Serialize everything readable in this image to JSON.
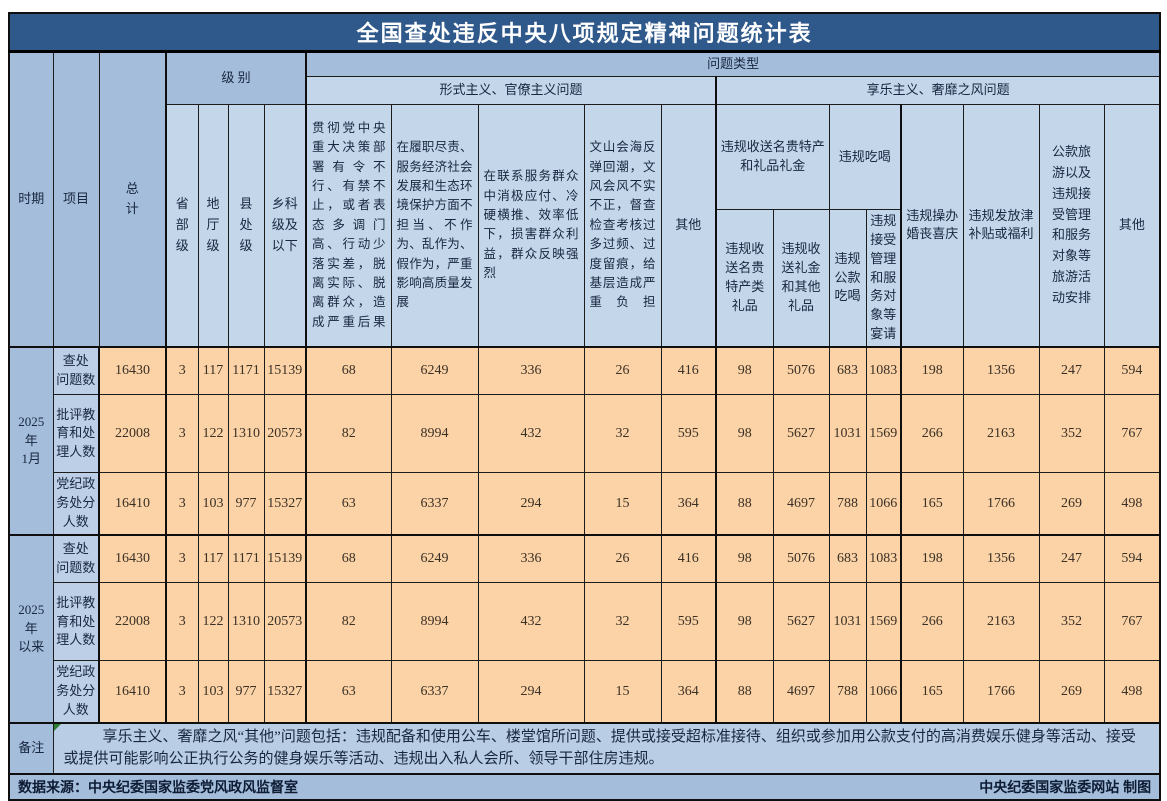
{
  "colors": {
    "title_bg": "#30598B",
    "title_text": "#FFFFFF",
    "header_medium_blue": "#A4BDDB",
    "header_light_blue": "#C3D6EA",
    "row_label_blue": "#BCCFE6",
    "remark_blue": "#B9CDE4",
    "data_cell_peach": "#FBD3A6",
    "border_black": "#0F0F0F"
  },
  "chart_data": {
    "type": "table",
    "title": "全国查处违反中央八项规定精神问题统计表",
    "header": {
      "period": "时期",
      "item": "项目",
      "total": "总计",
      "level_group": "级 别",
      "problem_type": "问题类型",
      "formalism_group": "形式主义、官僚主义问题",
      "hedonism_group": "享乐主义、奢靡之风问题",
      "level_cols": [
        "省部级",
        "地厅级",
        "县处级",
        "乡科级及以下"
      ],
      "formalism_cols": [
        "贯彻党中央重大决策部署有令不行、有禁不止，或者表态多调门高、行动少落实差，脱离实际、脱离群众，造成严重后果",
        "在履职尽责、服务经济社会发展和生态环境保护方面不担当、不作为、乱作为、假作为，严重影响高质量发展",
        "在联系服务群众中消极应付、冷硬横推、效率低下，损害群众利益，群众反映强烈",
        "文山会海反弹回潮，文风会风不实不正，督查检查考核过多过频、过度留痕，给基层造成严重负担",
        "其他"
      ],
      "gifts_group": "违规收送名贵特产和礼品礼金",
      "gifts_cols": [
        "违规收送名贵特产类礼品",
        "违规收送礼金和其他礼品"
      ],
      "dining_group": "违规吃喝",
      "dining_cols": [
        "违规公款吃喝",
        "违规接受管理和服务对象等宴请"
      ],
      "hedonism_single_cols": [
        "违规操办婚丧喜庆",
        "违规发放津补贴或福利",
        "公款旅游以及违规接受管理和服务对象等旅游活动安排",
        "其他"
      ]
    },
    "sections": [
      {
        "period": "2025年1月",
        "period_lines": [
          "2025年",
          "1月"
        ],
        "rows": [
          {
            "label": "查处问题数",
            "label_lines": [
              "查处",
              "问题数"
            ],
            "values": [
              16430,
              3,
              117,
              1171,
              15139,
              68,
              6249,
              336,
              26,
              416,
              98,
              5076,
              683,
              1083,
              198,
              1356,
              247,
              594
            ]
          },
          {
            "label": "批评教育和处理人数",
            "label_lines": [
              "批评教",
              "育和处",
              "理人数"
            ],
            "values": [
              22008,
              3,
              122,
              1310,
              20573,
              82,
              8994,
              432,
              32,
              595,
              98,
              5627,
              1031,
              1569,
              266,
              2163,
              352,
              767
            ]
          },
          {
            "label": "党纪政务处分人数",
            "label_lines": [
              "党纪政",
              "务处分",
              "人数"
            ],
            "values": [
              16410,
              3,
              103,
              977,
              15327,
              63,
              6337,
              294,
              15,
              364,
              88,
              4697,
              788,
              1066,
              165,
              1766,
              269,
              498
            ]
          }
        ]
      },
      {
        "period": "2025年以来",
        "period_lines": [
          "2025年",
          "以来"
        ],
        "rows": [
          {
            "label": "查处问题数",
            "label_lines": [
              "查处",
              "问题数"
            ],
            "values": [
              16430,
              3,
              117,
              1171,
              15139,
              68,
              6249,
              336,
              26,
              416,
              98,
              5076,
              683,
              1083,
              198,
              1356,
              247,
              594
            ]
          },
          {
            "label": "批评教育和处理人数",
            "label_lines": [
              "批评教",
              "育和处",
              "理人数"
            ],
            "values": [
              22008,
              3,
              122,
              1310,
              20573,
              82,
              8994,
              432,
              32,
              595,
              98,
              5627,
              1031,
              1569,
              266,
              2163,
              352,
              767
            ]
          },
          {
            "label": "党纪政务处分人数",
            "label_lines": [
              "党纪政",
              "务处分",
              "人数"
            ],
            "values": [
              16410,
              3,
              103,
              977,
              15327,
              63,
              6337,
              294,
              15,
              364,
              88,
              4697,
              788,
              1066,
              165,
              1766,
              269,
              498
            ]
          }
        ]
      }
    ],
    "remark": {
      "label": "备注",
      "text": "享乐主义、奢靡之风“其他”问题包括：违规配备和使用公车、楼堂馆所问题、提供或接受超标准接待、组织或参加用公款支付的高消费娱乐健身等活动、接受或提供可能影响公正执行公务的健身娱乐等活动、违规出入私人会所、领导干部住房违规。"
    },
    "footer": {
      "source": "数据来源：中央纪委国家监委党风政风监督室",
      "credit": "中央纪委国家监委网站 制图"
    }
  }
}
